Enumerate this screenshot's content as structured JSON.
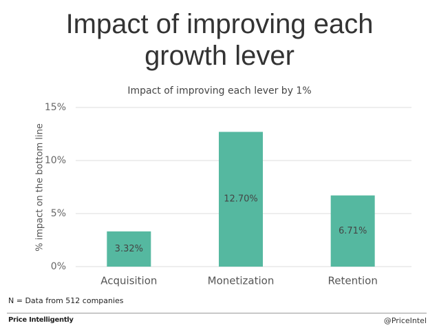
{
  "slide": {
    "title": "Impact of improving each growth lever",
    "footnote": "N = Data from 512 companies",
    "brand": "Price Intelligently",
    "handle": "@PriceIntel"
  },
  "chart_data": {
    "type": "bar",
    "title": "Impact of improving each lever by 1%",
    "ylabel": "% impact on the bottom line",
    "categories": [
      "Acquisition",
      "Monetization",
      "Retention"
    ],
    "values": [
      3.32,
      12.7,
      6.71
    ],
    "value_labels": [
      "3.32%",
      "12.70%",
      "6.71%"
    ],
    "color": "#55b8a0",
    "ylim": [
      0,
      15
    ],
    "yticks": [
      {
        "value": 0,
        "label": "0%"
      },
      {
        "value": 5,
        "label": "5%"
      },
      {
        "value": 10,
        "label": "10%"
      },
      {
        "value": 15,
        "label": "15%"
      }
    ],
    "grid": true
  }
}
